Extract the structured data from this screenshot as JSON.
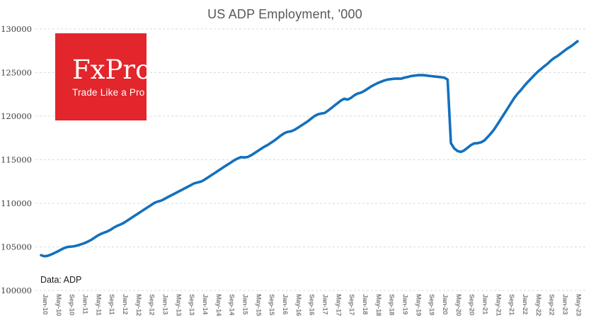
{
  "title": "US ADP Employment, '000",
  "annotation": "Data: ADP",
  "logo": {
    "text": "FxPro",
    "tagline": "Trade Like a Pro",
    "background_color": "#e2262b",
    "text_color": "#ffffff"
  },
  "colors": {
    "line": "#1470bd",
    "grid": "#d9d9d9",
    "title": "#595959",
    "x_axis_labels": "#7f7f7f",
    "y_axis_labels": "#3f3f3f",
    "background": "#ffffff"
  },
  "chart_data": {
    "type": "line",
    "title": "US ADP Employment, '000",
    "series_name": "US ADP Employment",
    "unit": "thousands",
    "frequency": "monthly",
    "x_start": "Jan-10",
    "x_end": "Jun-23",
    "ylim": [
      100000,
      130000
    ],
    "y_ticks": [
      100000,
      105000,
      110000,
      115000,
      120000,
      125000,
      130000
    ],
    "grid": "horizontal-dashed",
    "legend": "none",
    "x_tick_labels": [
      "Jan-10",
      "May-10",
      "Sep-10",
      "Jan-11",
      "May-11",
      "Sep-11",
      "Jan-12",
      "May-12",
      "Sep-12",
      "Jan-13",
      "May-13",
      "Sep-13",
      "Jan-14",
      "May-14",
      "Sep-14",
      "Jan-15",
      "May-15",
      "Sep-15",
      "Jan-16",
      "May-16",
      "Sep-16",
      "Jan-17",
      "May-17",
      "Sep-17",
      "Jan-18",
      "May-18",
      "Sep-18",
      "Jan-19",
      "May-19",
      "Sep-19",
      "Jan-20",
      "May-20",
      "Sep-20",
      "Jan-21",
      "May-21",
      "Sep-21",
      "Jan-22",
      "May-22",
      "Sep-22",
      "Jan-23",
      "May-23"
    ],
    "values": [
      104050,
      103930,
      103980,
      104120,
      104300,
      104480,
      104680,
      104880,
      105000,
      105030,
      105080,
      105180,
      105300,
      105430,
      105600,
      105800,
      106050,
      106300,
      106500,
      106650,
      106800,
      107000,
      107250,
      107450,
      107600,
      107800,
      108050,
      108300,
      108550,
      108800,
      109050,
      109300,
      109550,
      109800,
      110050,
      110200,
      110300,
      110500,
      110700,
      110900,
      111100,
      111300,
      111500,
      111700,
      111900,
      112100,
      112300,
      112400,
      112500,
      112700,
      112950,
      113200,
      113450,
      113700,
      113950,
      114200,
      114450,
      114700,
      114950,
      115150,
      115300,
      115270,
      115320,
      115500,
      115750,
      116000,
      116250,
      116500,
      116700,
      116950,
      117200,
      117500,
      117800,
      118050,
      118200,
      118260,
      118420,
      118650,
      118900,
      119150,
      119400,
      119700,
      120000,
      120200,
      120300,
      120360,
      120600,
      120900,
      121200,
      121500,
      121800,
      122000,
      121900,
      122100,
      122400,
      122600,
      122700,
      122900,
      123150,
      123400,
      123600,
      123800,
      123950,
      124100,
      124200,
      124250,
      124300,
      124320,
      124300,
      124420,
      124500,
      124600,
      124650,
      124700,
      124720,
      124700,
      124650,
      124600,
      124560,
      124520,
      124480,
      124420,
      124200,
      116900,
      116300,
      116000,
      115900,
      116080,
      116380,
      116680,
      116880,
      116900,
      117000,
      117200,
      117600,
      118020,
      118500,
      119080,
      119680,
      120280,
      120880,
      121480,
      122080,
      122580,
      123000,
      123480,
      123900,
      124300,
      124700,
      125080,
      125400,
      125720,
      126020,
      126380,
      126680,
      126900,
      127200,
      127500,
      127780,
      128020,
      128300,
      128600
    ]
  }
}
